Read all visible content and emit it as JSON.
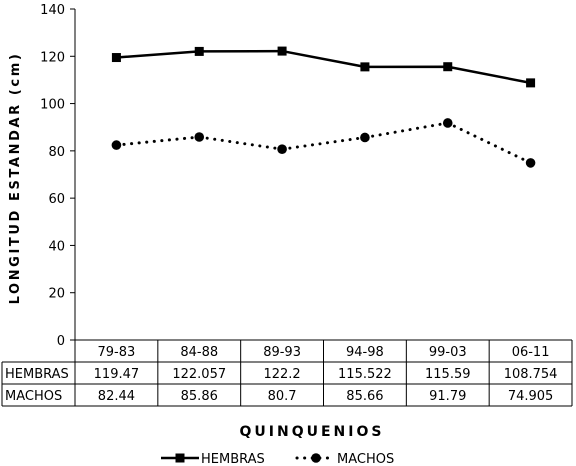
{
  "chart_data": {
    "type": "line",
    "categories": [
      "79-83",
      "84-88",
      "89-93",
      "94-98",
      "99-03",
      "06-11"
    ],
    "series": [
      {
        "name": "HEMBRAS",
        "values": [
          119.47,
          122.057,
          122.2,
          115.522,
          115.59,
          108.754
        ],
        "labels": [
          "119.47",
          "122.057",
          "122.2",
          "115.522",
          "115.59",
          "108.754"
        ],
        "style": "solid",
        "marker": "square",
        "color": "#000000"
      },
      {
        "name": "MACHOS",
        "values": [
          82.44,
          85.86,
          80.7,
          85.66,
          91.79,
          74.905
        ],
        "labels": [
          "82.44",
          "85.86",
          "80.7",
          "85.66",
          "91.79",
          "74.905"
        ],
        "style": "dotted",
        "marker": "circle",
        "color": "#000000"
      }
    ],
    "ylabel": "LONGITUD ESTANDAR (cm)",
    "xlabel": "QUINQUENIOS",
    "ylim": [
      0,
      140
    ],
    "yticks": [
      "0",
      "20",
      "40",
      "60",
      "80",
      "100",
      "120",
      "140"
    ],
    "grid": false,
    "legend": "bottom",
    "data_table": true
  }
}
